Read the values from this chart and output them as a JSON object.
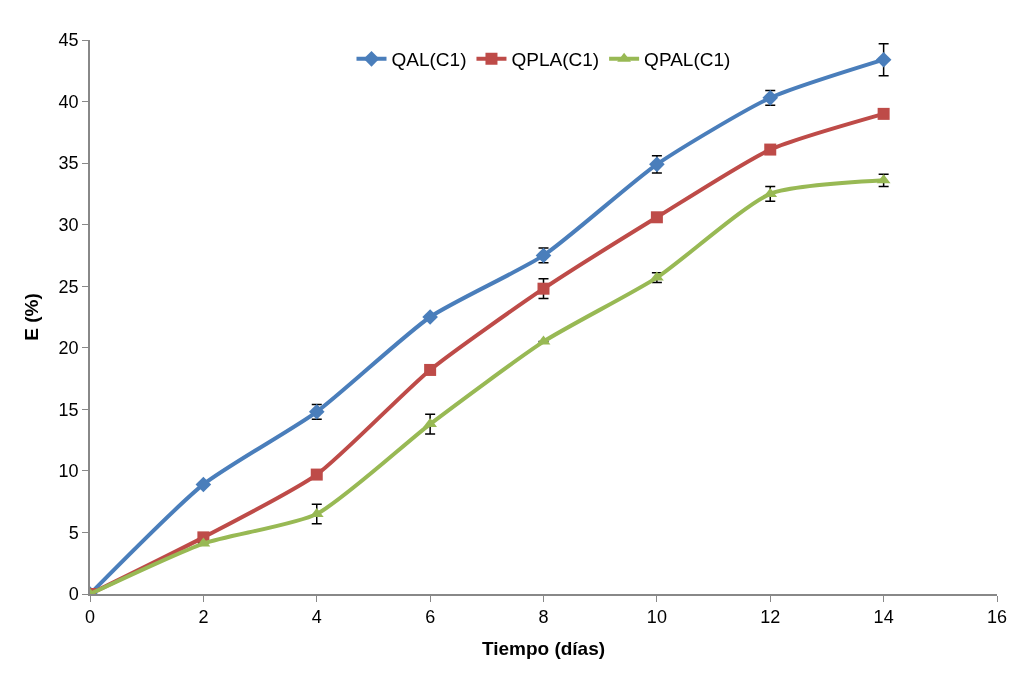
{
  "chart_data": {
    "type": "line",
    "xlabel": "Tiempo (días)",
    "ylabel": "E (%)",
    "x": [
      0,
      2,
      4,
      6,
      8,
      10,
      12,
      14
    ],
    "series": [
      {
        "name": "QAL(C1)",
        "color": "#4a7ebb",
        "marker": "diamond",
        "values": [
          0,
          8.9,
          14.8,
          22.5,
          27.5,
          34.9,
          40.3,
          43.4
        ],
        "errors": [
          null,
          null,
          0.6,
          null,
          0.6,
          0.7,
          0.6,
          1.3
        ]
      },
      {
        "name": "QPLA(C1)",
        "color": "#be4b48",
        "marker": "square",
        "values": [
          0,
          4.6,
          9.7,
          18.2,
          24.8,
          30.6,
          36.1,
          39.0
        ],
        "errors": [
          null,
          null,
          null,
          null,
          0.8,
          null,
          null,
          null
        ]
      },
      {
        "name": "QPAL(C1)",
        "color": "#98b954",
        "marker": "triangle",
        "values": [
          0,
          4.1,
          6.5,
          13.8,
          20.5,
          25.7,
          32.5,
          33.6
        ],
        "errors": [
          null,
          null,
          0.8,
          0.8,
          null,
          0.4,
          0.6,
          0.5
        ]
      }
    ],
    "xlim": [
      0,
      16
    ],
    "xticks": [
      0,
      2,
      4,
      6,
      8,
      10,
      12,
      14,
      16
    ],
    "ylim": [
      0,
      45
    ],
    "yticks": [
      0,
      5,
      10,
      15,
      20,
      25,
      30,
      35,
      40,
      45
    ],
    "legend": "top",
    "line_style": "solid"
  }
}
